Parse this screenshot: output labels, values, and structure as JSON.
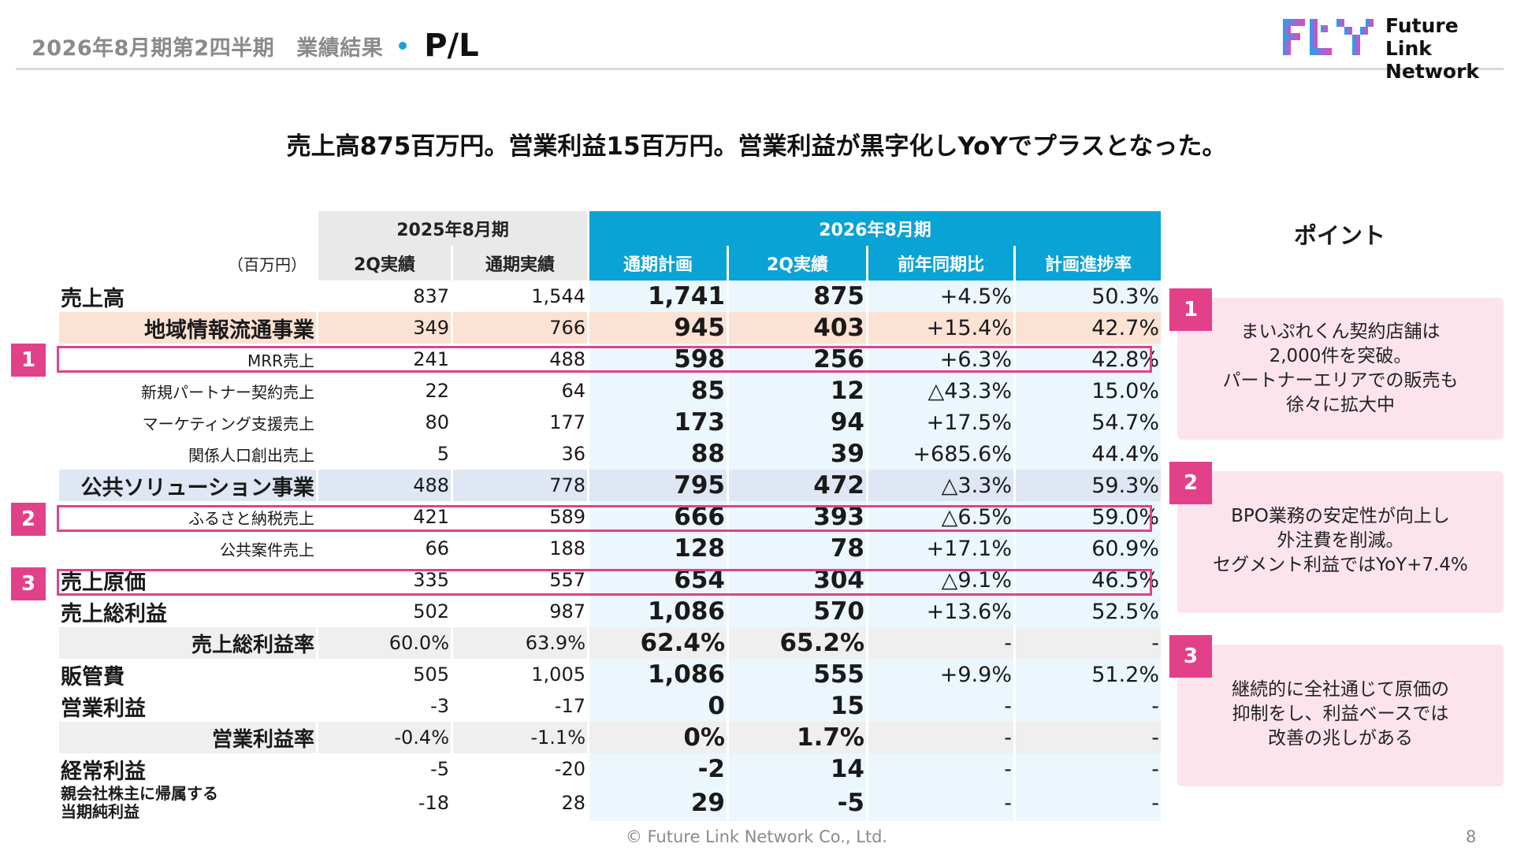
{
  "header": {
    "crumb1": "2026年8月期第2四半期",
    "crumb2": "業績結果",
    "title": "P/L"
  },
  "logo": {
    "line1": "Future Link",
    "line2": "Network"
  },
  "headline": "売上高875百万円。営業利益15百万円。営業利益が黒字化しYoYでプラスとなった。",
  "table": {
    "period_prev": "2025年8月期",
    "period_cur": "2026年8月期",
    "unit": "（百万円）",
    "columns": [
      "2Q実績",
      "通期実績",
      "通期計画",
      "2Q実績",
      "前年同期比",
      "計画進捗率"
    ],
    "rows": [
      {
        "label": "売上高",
        "v": [
          "837",
          "1,544",
          "1,741",
          "875",
          "+4.5%",
          "50.3%"
        ]
      },
      {
        "label": "地域情報流通事業",
        "v": [
          "349",
          "766",
          "945",
          "403",
          "+15.4%",
          "42.7%"
        ]
      },
      {
        "label": "MRR売上",
        "v": [
          "241",
          "488",
          "598",
          "256",
          "+6.3%",
          "42.8%"
        ]
      },
      {
        "label": "新規パートナー契約売上",
        "v": [
          "22",
          "64",
          "85",
          "12",
          "△43.3%",
          "15.0%"
        ]
      },
      {
        "label": "マーケティング支援売上",
        "v": [
          "80",
          "177",
          "173",
          "94",
          "+17.5%",
          "54.7%"
        ]
      },
      {
        "label": "関係人口創出売上",
        "v": [
          "5",
          "36",
          "88",
          "39",
          "+685.6%",
          "44.4%"
        ]
      },
      {
        "label": "公共ソリューション事業",
        "v": [
          "488",
          "778",
          "795",
          "472",
          "△3.3%",
          "59.3%"
        ]
      },
      {
        "label": "ふるさと納税売上",
        "v": [
          "421",
          "589",
          "666",
          "393",
          "△6.5%",
          "59.0%"
        ]
      },
      {
        "label": "公共案件売上",
        "v": [
          "66",
          "188",
          "128",
          "78",
          "+17.1%",
          "60.9%"
        ]
      },
      {
        "label": "売上原価",
        "v": [
          "335",
          "557",
          "654",
          "304",
          "△9.1%",
          "46.5%"
        ]
      },
      {
        "label": "売上総利益",
        "v": [
          "502",
          "987",
          "1,086",
          "570",
          "+13.6%",
          "52.5%"
        ]
      },
      {
        "label": "売上総利益率",
        "v": [
          "60.0%",
          "63.9%",
          "62.4%",
          "65.2%",
          "-",
          "-"
        ]
      },
      {
        "label": "販管費",
        "v": [
          "505",
          "1,005",
          "1,086",
          "555",
          "+9.9%",
          "51.2%"
        ]
      },
      {
        "label": "営業利益",
        "v": [
          "-3",
          "-17",
          "0",
          "15",
          "-",
          "-"
        ]
      },
      {
        "label": "営業利益率",
        "v": [
          "-0.4%",
          "-1.1%",
          "0%",
          "1.7%",
          "-",
          "-"
        ]
      },
      {
        "label": "経常利益",
        "v": [
          "-5",
          "-20",
          "-2",
          "14",
          "-",
          "-"
        ]
      },
      {
        "label1": "親会社株主に帰属する",
        "label2": "当期純利益",
        "v": [
          "-18",
          "28",
          "29",
          "-5",
          "-",
          "-"
        ]
      }
    ]
  },
  "markers": [
    "1",
    "2",
    "3"
  ],
  "points": {
    "title": "ポイント",
    "cards": [
      {
        "num": "1",
        "lines": [
          "まいぷれくん契約店舗は",
          "2,000件を突破。",
          "パートナーエリアでの販売も",
          "徐々に拡大中"
        ]
      },
      {
        "num": "2",
        "lines": [
          "BPO業務の安定性が向上し",
          "外注費を削減。",
          "セグメント利益ではYoY+7.4%"
        ]
      },
      {
        "num": "3",
        "lines": [
          "継続的に全社通じて原価の",
          "抑制をし、利益ベースでは",
          "改善の兆しがある"
        ]
      }
    ]
  },
  "footer": "© Future Link Network Co., Ltd.",
  "page_number": "8",
  "colors": {
    "accent_blue": "#0aa3d6",
    "accent_pink": "#e2418a",
    "segment1_bg": "#fbe2d3",
    "segment2_bg": "#dfe6f4"
  }
}
